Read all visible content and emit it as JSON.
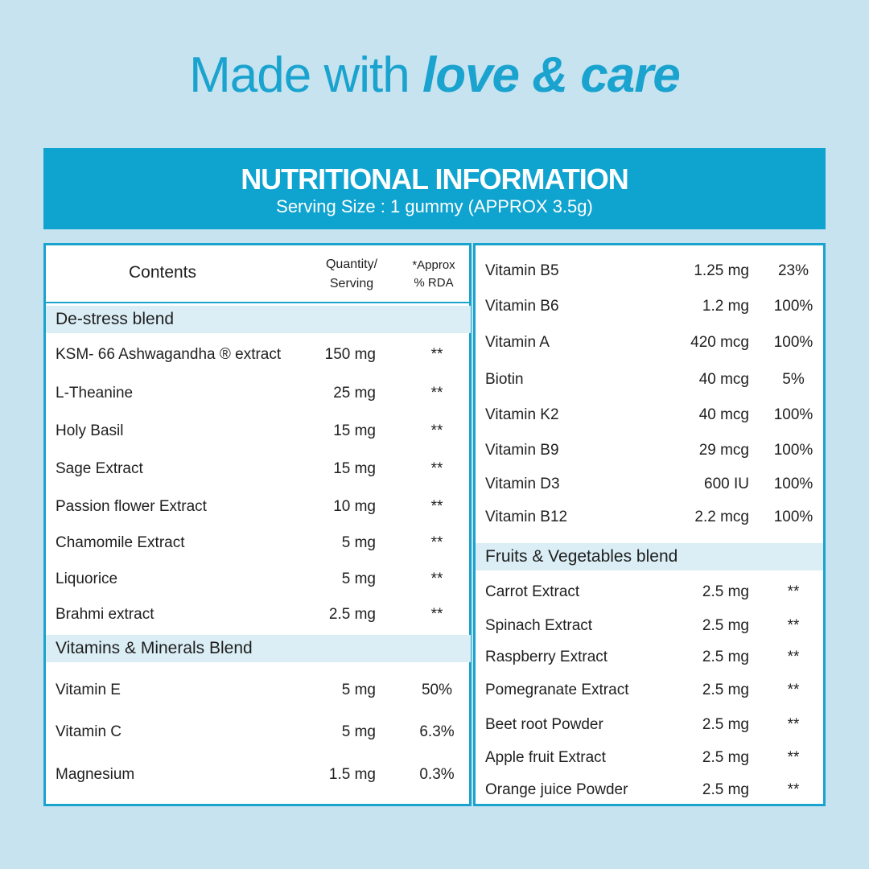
{
  "headline": {
    "light": "Made with ",
    "bold": "love & care"
  },
  "banner": {
    "title": "NUTRITIONAL INFORMATION",
    "subtitle": "Serving Size : 1 gummy (APPROX 3.5g)"
  },
  "table_header": {
    "contents": "Contents",
    "quantity_line1": "Quantity/",
    "quantity_line2": "Serving",
    "rda_line1": "*Approx",
    "rda_line2": "% RDA"
  },
  "left": {
    "destress": {
      "title": "De-stress blend",
      "rows": [
        {
          "name": "KSM- 66 Ashwagandha ® extract",
          "qty": "150 mg",
          "rda": "**"
        },
        {
          "name": "L-Theanine",
          "qty": "25 mg",
          "rda": "**"
        },
        {
          "name": "Holy Basil",
          "qty": "15 mg",
          "rda": "**"
        },
        {
          "name": "Sage Extract",
          "qty": "15 mg",
          "rda": "**"
        },
        {
          "name": "Passion flower Extract",
          "qty": "10 mg",
          "rda": "**"
        },
        {
          "name": "Chamomile Extract",
          "qty": "5 mg",
          "rda": "**"
        },
        {
          "name": "Liquorice",
          "qty": "5 mg",
          "rda": "**"
        },
        {
          "name": "Brahmi extract",
          "qty": "2.5 mg",
          "rda": "**"
        }
      ]
    },
    "vitamins": {
      "title": "Vitamins & Minerals Blend",
      "rows": [
        {
          "name": "Vitamin E",
          "qty": "5 mg",
          "rda": "50%"
        },
        {
          "name": "Vitamin C",
          "qty": "5 mg",
          "rda": "6.3%"
        },
        {
          "name": "Magnesium",
          "qty": "1.5 mg",
          "rda": "0.3%"
        }
      ]
    }
  },
  "right": {
    "vitamins": {
      "rows": [
        {
          "name": "Vitamin B5",
          "qty": "1.25 mg",
          "rda": "23%"
        },
        {
          "name": "Vitamin B6",
          "qty": "1.2 mg",
          "rda": "100%"
        },
        {
          "name": "Vitamin A",
          "qty": "420 mcg",
          "rda": "100%"
        },
        {
          "name": "Biotin",
          "qty": "40 mcg",
          "rda": "5%"
        },
        {
          "name": "Vitamin K2",
          "qty": "40 mcg",
          "rda": "100%"
        },
        {
          "name": "Vitamin B9",
          "qty": "29 mcg",
          "rda": "100%"
        },
        {
          "name": "Vitamin D3",
          "qty": "600 IU",
          "rda": "100%"
        },
        {
          "name": "Vitamin B12",
          "qty": "2.2 mcg",
          "rda": "100%"
        }
      ]
    },
    "fruits": {
      "title": "Fruits & Vegetables blend",
      "rows": [
        {
          "name": "Carrot Extract",
          "qty": "2.5 mg",
          "rda": "**"
        },
        {
          "name": "Spinach Extract",
          "qty": "2.5 mg",
          "rda": "**"
        },
        {
          "name": "Raspberry Extract",
          "qty": "2.5 mg",
          "rda": "**"
        },
        {
          "name": "Pomegranate Extract",
          "qty": "2.5 mg",
          "rda": "**"
        },
        {
          "name": "Beet root Powder",
          "qty": "2.5 mg",
          "rda": "**"
        },
        {
          "name": "Apple fruit Extract",
          "qty": "2.5 mg",
          "rda": "**"
        },
        {
          "name": "Orange juice Powder",
          "qty": "2.5 mg",
          "rda": "**"
        }
      ]
    }
  }
}
